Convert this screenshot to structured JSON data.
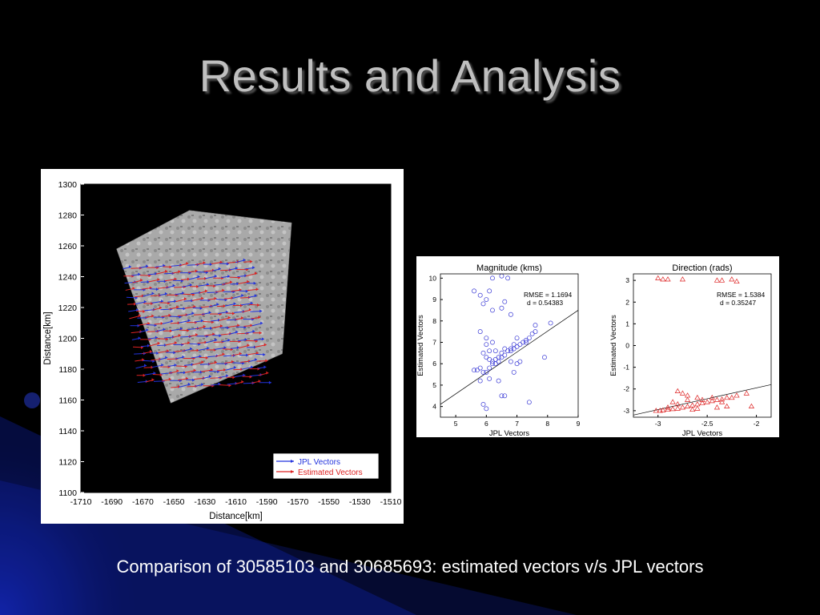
{
  "slide": {
    "title": "Results and Analysis",
    "caption": "Comparison of 30585103 and 30685693: estimated vectors v/s JPL vectors"
  },
  "colors": {
    "background": "#000000",
    "accent_glow": "#1a2fd0",
    "jpl_vectors": "#2233dd",
    "estimated_vectors": "#dd2222",
    "magnitude_points": "#3b3bd6",
    "direction_points": "#dd2222"
  },
  "chart_data": [
    {
      "type": "scatter",
      "title": "",
      "xlabel": "Distance[km]",
      "ylabel": "Distance[km]",
      "xlim": [
        -1710,
        -1510
      ],
      "ylim": [
        1100,
        1300
      ],
      "x_ticks": [
        -1710,
        -1690,
        -1670,
        -1650,
        -1630,
        -1610,
        -1590,
        -1570,
        -1550,
        -1530,
        -1510
      ],
      "y_ticks": [
        1100,
        1120,
        1140,
        1160,
        1180,
        1200,
        1220,
        1240,
        1260,
        1280,
        1300
      ],
      "legend": {
        "placement": "bottom-right",
        "entries": [
          {
            "name": "JPL Vectors",
            "color": "#2233dd"
          },
          {
            "name": "Estimated Vectors",
            "color": "#dd2222"
          }
        ]
      },
      "image_footprint": [
        [
          -1640,
          1283
        ],
        [
          -1574,
          1275
        ],
        [
          -1580,
          1190
        ],
        [
          -1652,
          1158
        ],
        [
          -1687,
          1258
        ]
      ]
    },
    {
      "type": "scatter",
      "title": "Magnitude (kms)",
      "xlabel": "JPL Vectors",
      "ylabel": "Estimated Vectors",
      "xlim": [
        4.5,
        9
      ],
      "ylim": [
        3.5,
        10.2
      ],
      "x_ticks": [
        5,
        6,
        7,
        8,
        9
      ],
      "y_ticks": [
        4,
        5,
        6,
        7,
        8,
        9,
        10
      ],
      "annotations": [
        "RMSE = 1.1694",
        "d = 0.54383"
      ],
      "fit_line": [
        [
          4.5,
          4.1
        ],
        [
          9,
          8.5
        ]
      ],
      "series": [
        {
          "marker": "circle",
          "points": [
            [
              5.6,
              9.4
            ],
            [
              5.8,
              9.2
            ],
            [
              6.2,
              10.0
            ],
            [
              6.5,
              10.1
            ],
            [
              6.7,
              10.0
            ],
            [
              6.1,
              9.4
            ],
            [
              6.0,
              9.0
            ],
            [
              5.9,
              8.8
            ],
            [
              6.6,
              8.9
            ],
            [
              6.2,
              8.5
            ],
            [
              6.5,
              8.6
            ],
            [
              6.8,
              8.3
            ],
            [
              7.6,
              7.8
            ],
            [
              5.8,
              7.5
            ],
            [
              6.0,
              7.2
            ],
            [
              6.2,
              7.0
            ],
            [
              6.1,
              6.6
            ],
            [
              5.9,
              6.5
            ],
            [
              6.0,
              6.3
            ],
            [
              6.1,
              6.2
            ],
            [
              6.2,
              6.1
            ],
            [
              6.3,
              6.2
            ],
            [
              6.4,
              6.3
            ],
            [
              6.2,
              6.0
            ],
            [
              6.3,
              6.0
            ],
            [
              6.4,
              6.1
            ],
            [
              6.5,
              6.3
            ],
            [
              6.6,
              6.4
            ],
            [
              6.7,
              6.6
            ],
            [
              6.8,
              6.7
            ],
            [
              6.9,
              6.7
            ],
            [
              7.0,
              6.8
            ],
            [
              7.1,
              6.9
            ],
            [
              7.2,
              7.0
            ],
            [
              7.3,
              7.1
            ],
            [
              7.4,
              7.2
            ],
            [
              7.5,
              7.4
            ],
            [
              7.6,
              7.5
            ],
            [
              7.0,
              7.2
            ],
            [
              6.9,
              6.9
            ],
            [
              6.8,
              6.6
            ],
            [
              6.5,
              6.5
            ],
            [
              6.6,
              6.7
            ],
            [
              5.7,
              5.7
            ],
            [
              5.8,
              5.8
            ],
            [
              5.9,
              5.6
            ],
            [
              6.0,
              5.6
            ],
            [
              6.1,
              5.8
            ],
            [
              5.6,
              5.7
            ],
            [
              6.8,
              6.1
            ],
            [
              7.0,
              6.0
            ],
            [
              7.1,
              6.1
            ],
            [
              6.9,
              5.6
            ],
            [
              6.4,
              5.2
            ],
            [
              6.6,
              4.5
            ],
            [
              7.4,
              4.2
            ],
            [
              6.5,
              4.5
            ],
            [
              5.9,
              4.1
            ],
            [
              6.0,
              3.9
            ],
            [
              5.8,
              5.2
            ],
            [
              6.1,
              5.3
            ],
            [
              7.9,
              6.3
            ],
            [
              8.1,
              7.9
            ],
            [
              7.3,
              7.0
            ],
            [
              6.3,
              6.6
            ],
            [
              6.0,
              6.9
            ]
          ]
        }
      ]
    },
    {
      "type": "scatter",
      "title": "Direction (rads)",
      "xlabel": "JPL Vectors",
      "ylabel": "Estimated Vectors",
      "xlim": [
        -3.25,
        -1.85
      ],
      "ylim": [
        -3.3,
        3.3
      ],
      "x_ticks": [
        -3,
        -2.5,
        -2
      ],
      "x_tick_labels": [
        "-3",
        "-2.5",
        "-2"
      ],
      "y_ticks": [
        -3,
        -2,
        -1,
        0,
        1,
        2,
        3
      ],
      "annotations": [
        "RMSE = 1.5384",
        "d = 0.35247"
      ],
      "fit_line": [
        [
          -3.25,
          -3.2
        ],
        [
          -1.85,
          -1.8
        ]
      ],
      "series": [
        {
          "marker": "triangle",
          "points": [
            [
              -3.0,
              3.1
            ],
            [
              -2.95,
              3.05
            ],
            [
              -2.9,
              3.05
            ],
            [
              -2.75,
              3.05
            ],
            [
              -2.35,
              3.0
            ],
            [
              -2.25,
              3.05
            ],
            [
              -2.4,
              3.0
            ],
            [
              -2.2,
              2.95
            ],
            [
              -3.02,
              -3.0
            ],
            [
              -2.98,
              -3.0
            ],
            [
              -2.95,
              -2.98
            ],
            [
              -2.9,
              -2.95
            ],
            [
              -2.85,
              -2.92
            ],
            [
              -2.8,
              -2.9
            ],
            [
              -2.75,
              -2.85
            ],
            [
              -2.7,
              -2.8
            ],
            [
              -2.65,
              -2.75
            ],
            [
              -2.6,
              -2.7
            ],
            [
              -2.55,
              -2.65
            ],
            [
              -2.5,
              -2.6
            ],
            [
              -2.45,
              -2.55
            ],
            [
              -2.4,
              -2.5
            ],
            [
              -2.35,
              -2.48
            ],
            [
              -2.3,
              -2.4
            ],
            [
              -2.25,
              -2.4
            ],
            [
              -2.2,
              -2.3
            ],
            [
              -2.85,
              -2.6
            ],
            [
              -2.8,
              -2.7
            ],
            [
              -2.7,
              -2.5
            ],
            [
              -2.6,
              -2.4
            ],
            [
              -2.55,
              -2.5
            ],
            [
              -2.45,
              -2.4
            ],
            [
              -2.75,
              -2.2
            ],
            [
              -2.8,
              -2.1
            ],
            [
              -2.7,
              -2.3
            ],
            [
              -2.4,
              -2.85
            ],
            [
              -2.35,
              -2.6
            ],
            [
              -2.3,
              -2.8
            ],
            [
              -2.1,
              -2.2
            ],
            [
              -2.05,
              -2.8
            ],
            [
              -2.6,
              -2.9
            ],
            [
              -2.9,
              -2.85
            ],
            [
              -2.65,
              -2.95
            ]
          ]
        }
      ]
    }
  ]
}
